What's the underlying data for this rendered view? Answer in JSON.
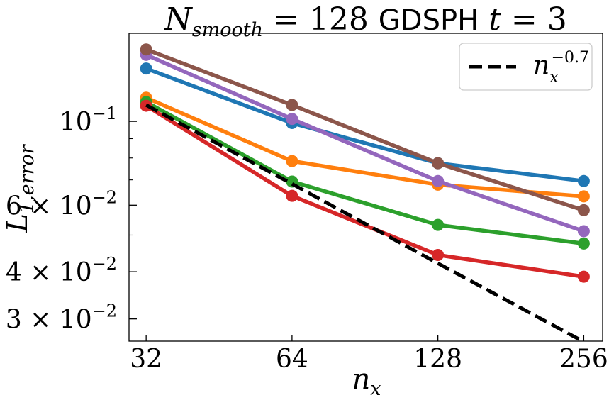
{
  "chart_data": {
    "type": "line",
    "scale": "log-log",
    "title": {
      "n_symbol": "N",
      "n_subscript": "smooth",
      "eq_value": " = 128 ",
      "method": "GDSPH",
      "t_symbol": "t",
      "t_eq_value": " = 3"
    },
    "xlabel": {
      "symbol": "n",
      "subscript": "x"
    },
    "ylabel": {
      "symbol": "L",
      "subscript": "1,error"
    },
    "x": [
      32,
      64,
      128,
      256
    ],
    "xlim": [
      29.5,
      280
    ],
    "ylim": [
      0.0262,
      0.171
    ],
    "xticks": [
      {
        "value": 32,
        "label": "32"
      },
      {
        "value": 64,
        "label": "64"
      },
      {
        "value": 128,
        "label": "128"
      },
      {
        "value": 256,
        "label": "256"
      }
    ],
    "yticks_major": [
      {
        "value": 0.1,
        "mant": "",
        "base": "10",
        "exp": "−1"
      },
      {
        "value": 0.06,
        "mant": "6 × ",
        "base": "10",
        "exp": "−2"
      },
      {
        "value": 0.04,
        "mant": "4 × ",
        "base": "10",
        "exp": "−2"
      },
      {
        "value": 0.03,
        "mant": "3 × ",
        "base": "10",
        "exp": "−2"
      }
    ],
    "yticks_minor": [
      0.09,
      0.08,
      0.07,
      0.05
    ],
    "series": [
      {
        "name": "blue",
        "color": "#1f77b4",
        "values": [
          0.138,
          0.099,
          0.0775,
          0.0695
        ]
      },
      {
        "name": "orange",
        "color": "#ff7f0e",
        "values": [
          0.1155,
          0.0785,
          0.068,
          0.0633
        ]
      },
      {
        "name": "green",
        "color": "#2ca02c",
        "values": [
          0.1125,
          0.0693,
          0.0532,
          0.0475
        ]
      },
      {
        "name": "red",
        "color": "#d62728",
        "values": [
          0.11,
          0.0635,
          0.0443,
          0.0388
        ]
      },
      {
        "name": "purple",
        "color": "#9467bd",
        "values": [
          0.15,
          0.1015,
          0.0695,
          0.0512
        ]
      },
      {
        "name": "brown",
        "color": "#8c564b",
        "values": [
          0.155,
          0.1105,
          0.0775,
          0.0582
        ]
      }
    ],
    "reference": {
      "color": "#000000",
      "x": [
        32,
        64,
        128,
        256
      ],
      "values": [
        0.1105,
        0.0683,
        0.0421,
        0.0261
      ],
      "legend": {
        "base": "n",
        "subscript": "x",
        "exponent": "−0.7"
      }
    },
    "legend_position": "top-right",
    "grid": false
  }
}
